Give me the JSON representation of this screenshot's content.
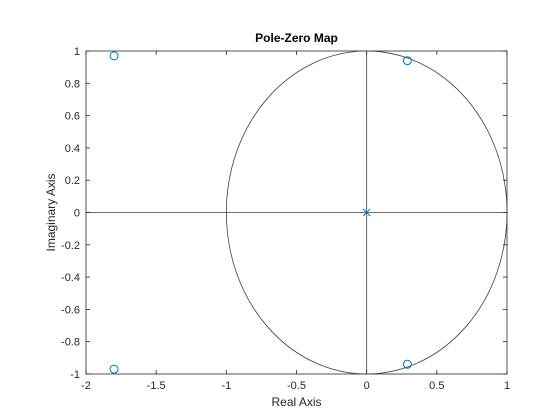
{
  "chart_data": {
    "type": "scatter",
    "title": "Pole-Zero Map",
    "xlabel": "Real Axis",
    "ylabel": "Imaginary Axis",
    "xlim": [
      -2,
      1
    ],
    "ylim": [
      -1,
      1
    ],
    "xticks": [
      "-2",
      "-1.5",
      "-1",
      "-0.5",
      "0",
      "0.5",
      "1"
    ],
    "xtick_values": [
      -2,
      -1.5,
      -1,
      -0.5,
      0,
      0.5,
      1
    ],
    "yticks": [
      "-1",
      "-0.8",
      "-0.6",
      "-0.4",
      "-0.2",
      "0",
      "0.2",
      "0.4",
      "0.6",
      "0.8",
      "1"
    ],
    "ytick_values": [
      -1,
      -0.8,
      -0.6,
      -0.4,
      -0.2,
      0,
      0.2,
      0.4,
      0.6,
      0.8,
      1
    ],
    "grid": false,
    "unit_circle": true,
    "marker_color": "#0072BD",
    "line_color": "#404040",
    "series": [
      {
        "marker": "o",
        "points": [
          {
            "x": -1.8,
            "y": 0.97
          },
          {
            "x": -1.8,
            "y": -0.97
          },
          {
            "x": 0.29,
            "y": 0.94
          },
          {
            "x": 0.29,
            "y": -0.94
          }
        ]
      },
      {
        "marker": "x",
        "points": [
          {
            "x": 0,
            "y": 0
          }
        ]
      }
    ]
  }
}
